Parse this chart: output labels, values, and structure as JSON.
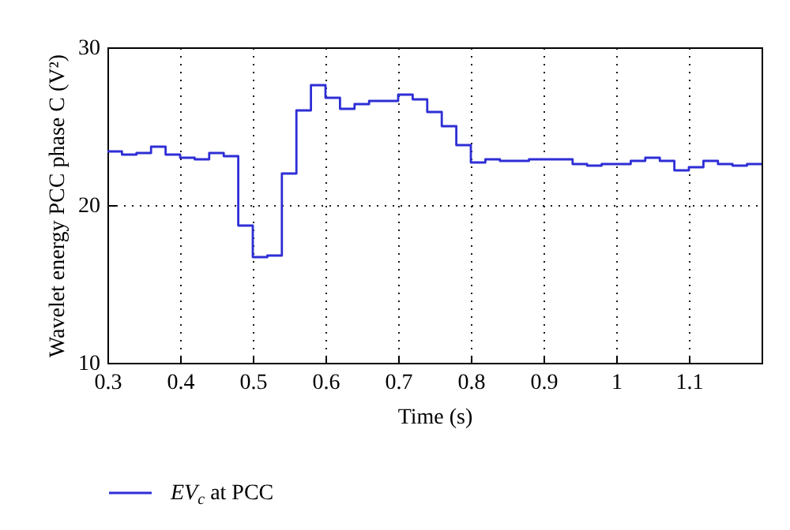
{
  "chart_data": {
    "type": "step",
    "xlabel": "Time (s)",
    "ylabel": "Wavelet energy PCC phase C (V²)",
    "x": [
      0.3,
      0.32,
      0.34,
      0.36,
      0.38,
      0.4,
      0.42,
      0.44,
      0.46,
      0.48,
      0.5,
      0.52,
      0.54,
      0.56,
      0.58,
      0.6,
      0.62,
      0.64,
      0.66,
      0.68,
      0.7,
      0.72,
      0.74,
      0.76,
      0.78,
      0.8,
      0.82,
      0.84,
      0.86,
      0.88,
      0.9,
      0.92,
      0.94,
      0.96,
      0.98,
      1.0,
      1.02,
      1.04,
      1.06,
      1.08,
      1.1,
      1.12,
      1.14,
      1.16,
      1.18,
      1.2
    ],
    "series": [
      {
        "name": "EV$_{c}$ at PCC",
        "color": "#2e2ed6",
        "values": [
          23.4,
          23.2,
          23.3,
          23.7,
          23.2,
          23.0,
          22.9,
          23.3,
          23.1,
          18.7,
          16.7,
          16.8,
          22.0,
          26.0,
          27.6,
          26.8,
          26.1,
          26.4,
          26.6,
          26.6,
          27.0,
          26.7,
          25.9,
          25.0,
          23.8,
          22.7,
          22.9,
          22.8,
          22.8,
          22.9,
          22.9,
          22.9,
          22.6,
          22.5,
          22.6,
          22.6,
          22.8,
          23.0,
          22.8,
          22.2,
          22.4,
          22.8,
          22.6,
          22.5,
          22.6,
          22.6
        ]
      }
    ],
    "xlim": [
      0.3,
      1.2
    ],
    "ylim": [
      10,
      30
    ],
    "xticks": [
      0.3,
      0.4,
      0.5,
      0.6,
      0.7,
      0.8,
      0.9,
      1,
      1.1
    ],
    "yticks": [
      10,
      20,
      30
    ],
    "grid": true,
    "legend": "bottom left"
  }
}
